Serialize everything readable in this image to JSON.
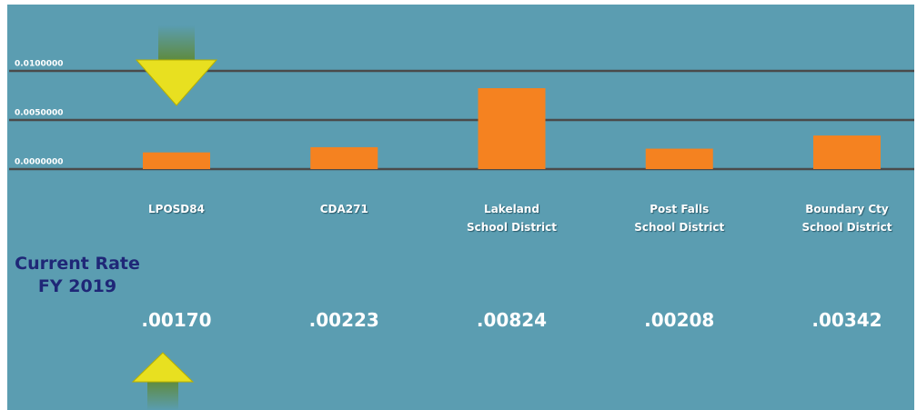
{
  "chart_data": {
    "type": "bar",
    "categories": [
      "LPOSD84",
      "CDA271",
      "Lakeland\nSchool District",
      "Post Falls\nSchool District",
      "Boundary Cty\nSchool District"
    ],
    "values": [
      0.0017,
      0.00223,
      0.00824,
      0.00208,
      0.00342
    ],
    "value_labels": [
      ".00170",
      ".00223",
      ".00824",
      ".00208",
      ".00342"
    ],
    "color": "#f58220",
    "ylim": [
      0,
      0.01
    ],
    "yticks": [
      {
        "value": 0,
        "label": "0.0000000"
      },
      {
        "value": 0.005,
        "label": "0.0050000"
      },
      {
        "value": 0.01,
        "label": "0.0100000"
      }
    ],
    "grid": true,
    "annotation": "Current Rate\nFY 2019"
  }
}
